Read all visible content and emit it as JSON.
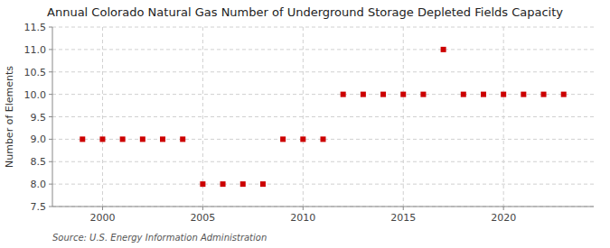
{
  "chart_data": {
    "type": "scatter",
    "title": "Annual Colorado Natural Gas Number of Underground Storage Depleted Fields Capacity",
    "ylabel": "Number of Elements",
    "source": "Source: U.S. Energy Information Administration",
    "x": [
      1999,
      2000,
      2001,
      2002,
      2003,
      2004,
      2005,
      2006,
      2007,
      2008,
      2009,
      2010,
      2011,
      2012,
      2013,
      2014,
      2015,
      2016,
      2017,
      2018,
      2019,
      2020,
      2021,
      2022,
      2023
    ],
    "values": [
      9,
      9,
      9,
      9,
      9,
      9,
      8,
      8,
      8,
      8,
      9,
      9,
      9,
      10,
      10,
      10,
      10,
      10,
      11,
      10,
      10,
      10,
      10,
      10,
      10
    ],
    "color": "#cc0000",
    "marker": "square",
    "xlim": [
      1997.5,
      2024.5
    ],
    "ylim": [
      7.5,
      11.5
    ],
    "xticks": [
      2000,
      2005,
      2010,
      2015,
      2020
    ],
    "yticks": [
      7.5,
      {
        "value": 8.0,
        "label": "8.0"
      },
      8.5,
      {
        "value": 9.0,
        "label": "9.0"
      },
      9.5,
      {
        "value": 10.0,
        "label": "10.0"
      },
      10.5,
      {
        "value": 11.0,
        "label": "11.0"
      },
      11.5
    ],
    "grid": true
  }
}
